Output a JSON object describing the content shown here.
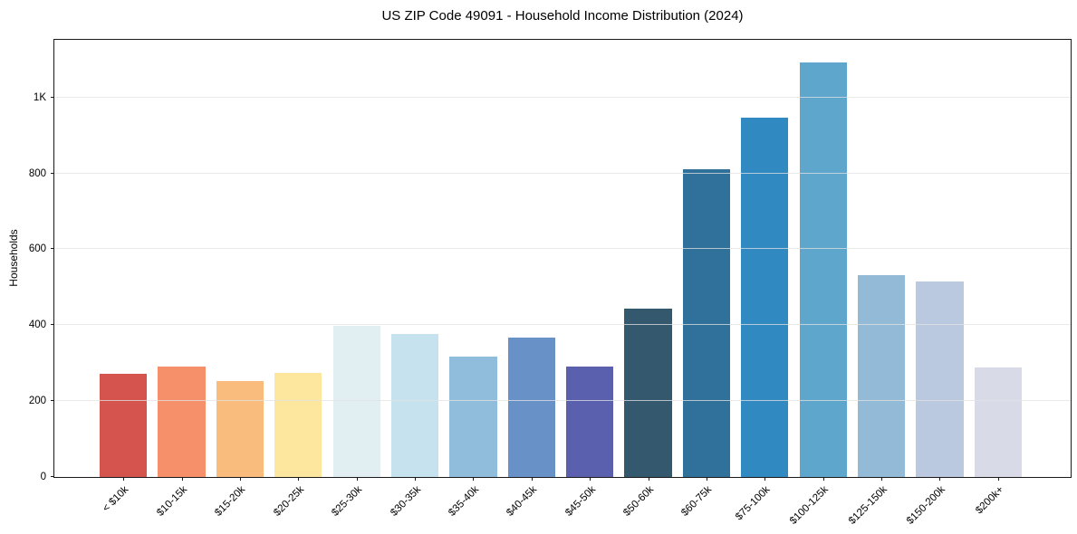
{
  "chart_data": {
    "type": "bar",
    "title": "US ZIP Code 49091 - Household Income Distribution (2024)",
    "xlabel": "",
    "ylabel": "Households",
    "categories": [
      "< $10k",
      "$10-15k",
      "$15-20k",
      "$20-25k",
      "$25-30k",
      "$30-35k",
      "$35-40k",
      "$40-45k",
      "$45-50k",
      "$50-60k",
      "$60-75k",
      "$75-100k",
      "$100-125k",
      "$125-150k",
      "$150-200k",
      "$200k+"
    ],
    "values": [
      271,
      290,
      252,
      275,
      398,
      376,
      317,
      367,
      290,
      443,
      810,
      948,
      1093,
      532,
      516,
      288
    ],
    "bar_colors": [
      "#d5544d",
      "#f5906a",
      "#fabc7c",
      "#fde79e",
      "#e2eff2",
      "#c5e2ee",
      "#90bddc",
      "#6891c7",
      "#5a60ae",
      "#34596e",
      "#2f719b",
      "#3089c1",
      "#5ea6cb",
      "#93bad7",
      "#bac9e0",
      "#d8dae8"
    ],
    "y_ticks": [
      {
        "value": 0,
        "label": "0"
      },
      {
        "value": 200,
        "label": "200"
      },
      {
        "value": 400,
        "label": "400"
      },
      {
        "value": 600,
        "label": "600"
      },
      {
        "value": 800,
        "label": "800"
      },
      {
        "value": 1000,
        "label": "1K"
      }
    ],
    "ylim": [
      0,
      1152
    ],
    "grid": "horizontal-only",
    "grid_above_bars": true,
    "legend": "none",
    "background_color": "#ffffff",
    "spine_color": "#1a1a1a",
    "grid_color": "#e1e1e1",
    "x_tick_rotation_deg": 45
  }
}
